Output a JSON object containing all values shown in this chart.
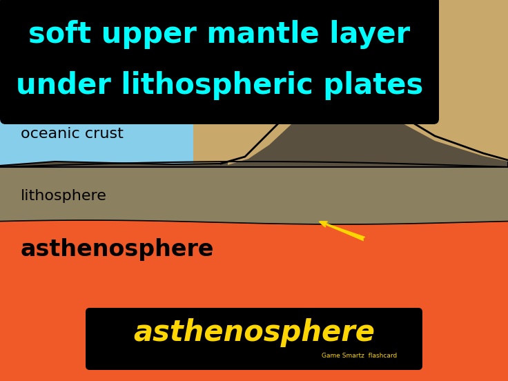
{
  "bg_color": "#f05a28",
  "ocean_color": "#87ceeb",
  "sand_color": "#c8a86b",
  "lithosphere_color": "#8b8060",
  "dark_rock_color": "#5a5040",
  "title_bg_color": "#000000",
  "title_text_line1": "soft upper mantle layer",
  "title_text_line2": "under lithospheric plates",
  "title_text_color": "#00ffff",
  "oceanic_crust_label": "oceanic crust",
  "lithosphere_label": "lithosphere",
  "asthenosphere_label": "asthenosphere",
  "bottom_label": "asthenosphere",
  "bottom_label_color": "#ffd700",
  "bottom_bg_color": "#000000",
  "gamesmartz_text": "Game Smartz  flashcard",
  "arrow_color": "#ffd700",
  "label_color": "#000000",
  "fig_width": 7.36,
  "fig_height": 5.52,
  "dpi": 100
}
